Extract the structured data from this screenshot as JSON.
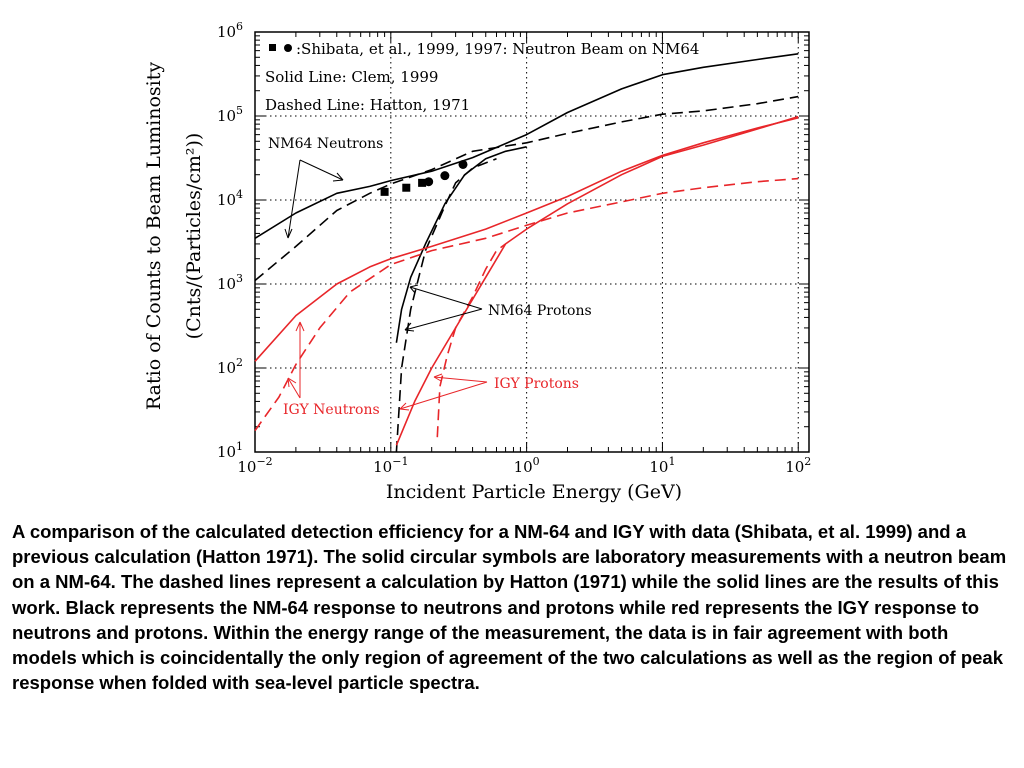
{
  "chart_data": {
    "type": "line",
    "xscale": "log",
    "yscale": "log",
    "xlim": [
      0.01,
      120
    ],
    "ylim": [
      10,
      1000000
    ],
    "xlabel": "Incident Particle Energy (GeV)",
    "ylabel_line1": "Ratio of Counts to Beam Luminosity",
    "ylabel_line2": "(Cnts/(Particles/cm²))",
    "grid": "dotted at decades",
    "x_ticks": [
      {
        "v": 0.01,
        "base": "10",
        "exp": "−2"
      },
      {
        "v": 0.1,
        "base": "10",
        "exp": "−1"
      },
      {
        "v": 1,
        "base": "10",
        "exp": "0"
      },
      {
        "v": 10,
        "base": "10",
        "exp": "1"
      },
      {
        "v": 100,
        "base": "10",
        "exp": "2"
      }
    ],
    "y_ticks": [
      {
        "v": 10,
        "base": "10",
        "exp": "1"
      },
      {
        "v": 100,
        "base": "10",
        "exp": "2"
      },
      {
        "v": 1000,
        "base": "10",
        "exp": "3"
      },
      {
        "v": 10000,
        "base": "10",
        "exp": "4"
      },
      {
        "v": 100000,
        "base": "10",
        "exp": "5"
      },
      {
        "v": 1000000,
        "base": "10",
        "exp": "6"
      }
    ],
    "legend": {
      "line1": ":Shibata, et al., 1999, 1997: Neutron Beam on NM64",
      "line2": "Solid Line: Clem, 1999",
      "line3": "Dashed Line: Hatton, 1971"
    },
    "series": [
      {
        "color": "#000000",
        "dash": false,
        "points": [
          [
            0.01,
            3500
          ],
          [
            0.02,
            7000
          ],
          [
            0.04,
            12000
          ],
          [
            0.07,
            14500
          ],
          [
            0.1,
            17000
          ],
          [
            0.2,
            22000
          ],
          [
            0.4,
            32000
          ],
          [
            1,
            60000
          ],
          [
            2,
            110000
          ],
          [
            5,
            210000
          ],
          [
            10,
            310000
          ],
          [
            20,
            380000
          ],
          [
            50,
            470000
          ],
          [
            100,
            550000
          ]
        ]
      },
      {
        "color": "#000000",
        "dash": true,
        "points": [
          [
            0.01,
            1100
          ],
          [
            0.02,
            2800
          ],
          [
            0.04,
            7500
          ],
          [
            0.07,
            12000
          ],
          [
            0.1,
            15500
          ],
          [
            0.2,
            23000
          ],
          [
            0.4,
            38000
          ],
          [
            1,
            48000
          ],
          [
            2,
            62000
          ],
          [
            5,
            85000
          ],
          [
            10,
            105000
          ],
          [
            20,
            115000
          ],
          [
            50,
            140000
          ],
          [
            100,
            170000
          ]
        ]
      },
      {
        "color": "#000000",
        "dash": false,
        "points": [
          [
            0.11,
            200
          ],
          [
            0.12,
            500
          ],
          [
            0.14,
            1200
          ],
          [
            0.18,
            3000
          ],
          [
            0.25,
            9000
          ],
          [
            0.35,
            20000
          ],
          [
            0.5,
            31000
          ],
          [
            0.7,
            38000
          ],
          [
            1,
            43000
          ]
        ]
      },
      {
        "color": "#000000",
        "dash": true,
        "points": [
          [
            0.11,
            10
          ],
          [
            0.12,
            100
          ],
          [
            0.14,
            500
          ],
          [
            0.18,
            2500
          ],
          [
            0.25,
            8500
          ],
          [
            0.3,
            16000
          ],
          [
            0.4,
            24000
          ],
          [
            0.6,
            31000
          ]
        ]
      },
      {
        "color": "#e8262a",
        "dash": false,
        "points": [
          [
            0.01,
            120
          ],
          [
            0.02,
            420
          ],
          [
            0.04,
            1000
          ],
          [
            0.07,
            1600
          ],
          [
            0.1,
            2000
          ],
          [
            0.2,
            2800
          ],
          [
            0.5,
            4500
          ],
          [
            1,
            7000
          ],
          [
            2,
            11000
          ],
          [
            5,
            22000
          ],
          [
            10,
            34000
          ],
          [
            20,
            48000
          ],
          [
            50,
            72000
          ],
          [
            100,
            95000
          ]
        ]
      },
      {
        "color": "#e8262a",
        "dash": true,
        "points": [
          [
            0.01,
            18
          ],
          [
            0.015,
            45
          ],
          [
            0.02,
            110
          ],
          [
            0.03,
            300
          ],
          [
            0.05,
            800
          ],
          [
            0.1,
            1700
          ],
          [
            0.2,
            2500
          ],
          [
            0.5,
            3500
          ],
          [
            1,
            5000
          ],
          [
            2,
            7000
          ],
          [
            5,
            9500
          ],
          [
            10,
            12000
          ],
          [
            20,
            14000
          ],
          [
            50,
            16500
          ],
          [
            100,
            18000
          ]
        ]
      },
      {
        "color": "#e8262a",
        "dash": false,
        "points": [
          [
            0.11,
            12
          ],
          [
            0.15,
            40
          ],
          [
            0.2,
            100
          ],
          [
            0.3,
            300
          ],
          [
            0.5,
            1200
          ],
          [
            0.7,
            3000
          ],
          [
            1,
            4500
          ],
          [
            2,
            9000
          ],
          [
            5,
            20000
          ],
          [
            10,
            33000
          ],
          [
            20,
            45000
          ],
          [
            50,
            70000
          ],
          [
            100,
            98000
          ]
        ]
      },
      {
        "color": "#e8262a",
        "dash": true,
        "points": [
          [
            0.22,
            15
          ],
          [
            0.23,
            60
          ],
          [
            0.26,
            140
          ],
          [
            0.3,
            300
          ],
          [
            0.4,
            700
          ],
          [
            0.5,
            1500
          ],
          [
            0.6,
            2500
          ],
          [
            0.7,
            3000
          ]
        ]
      }
    ],
    "markers": [
      {
        "shape": "square",
        "x": 0.09,
        "y": 12500
      },
      {
        "shape": "square",
        "x": 0.13,
        "y": 14000
      },
      {
        "shape": "square",
        "x": 0.17,
        "y": 16000
      },
      {
        "shape": "circle",
        "x": 0.19,
        "y": 16500
      },
      {
        "shape": "circle",
        "x": 0.25,
        "y": 19500
      },
      {
        "shape": "circle",
        "x": 0.34,
        "y": 26500
      }
    ],
    "annotations": {
      "nm64_neutrons": "NM64 Neutrons",
      "nm64_protons": "NM64 Protons",
      "igy_protons": "IGY Protons",
      "igy_neutrons": "IGY Neutrons"
    }
  },
  "caption": "A comparison of the calculated detection efficiency for a NM-64 and IGY with data (Shibata, et al. 1999) and a previous calculation (Hatton 1971). The solid circular symbols are laboratory measurements with a neutron beam on a NM-64. The dashed lines represent a calculation by Hatton (1971) while the solid lines are the results of this work. Black represents the NM-64 response to neutrons and protons while red represents the IGY response to neutrons and protons. Within the energy range of the measurement, the data is in fair agreement with both models which is coincidentally the only region of agreement of the two calculations as well as the region of peak response when folded with sea-level particle spectra."
}
